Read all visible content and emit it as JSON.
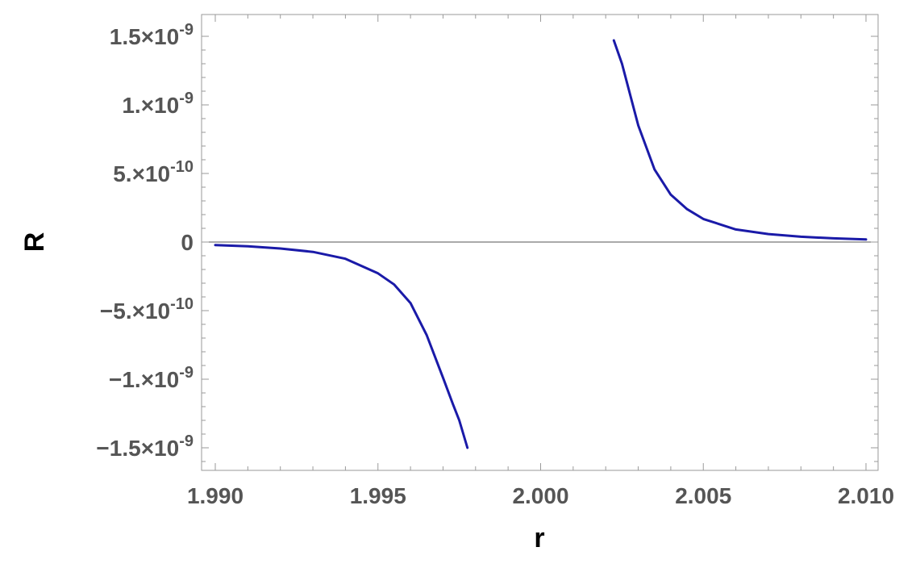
{
  "chart_data": {
    "type": "line",
    "xlabel": "r",
    "ylabel": "R",
    "xlim": [
      1.99,
      2.01
    ],
    "ylim": [
      -1.65e-09,
      1.6e-09
    ],
    "grid": false,
    "x_ticks": [
      {
        "value": 1.99,
        "label": "1.990"
      },
      {
        "value": 1.995,
        "label": "1.995"
      },
      {
        "value": 2.0,
        "label": "2.000"
      },
      {
        "value": 2.005,
        "label": "2.005"
      },
      {
        "value": 2.01,
        "label": "2.010"
      }
    ],
    "y_ticks": [
      {
        "value": 1.5e-09,
        "mant": "1.5",
        "exp": "-9"
      },
      {
        "value": 1e-09,
        "mant": "1.",
        "exp": "-9"
      },
      {
        "value": 5e-10,
        "mant": "5.",
        "exp": "-10"
      },
      {
        "value": 0,
        "mant": "0",
        "exp": ""
      },
      {
        "value": -5e-10,
        "mant": "−5.",
        "exp": "-10"
      },
      {
        "value": -1e-09,
        "mant": "−1.",
        "exp": "-9"
      },
      {
        "value": -1.5e-09,
        "mant": "−1.5",
        "exp": "-9"
      }
    ],
    "series": [
      {
        "color": "#1a1aa8",
        "segments": [
          {
            "x": [
              1.99,
              1.991,
              1.992,
              1.993,
              1.994,
              1.995,
              1.9955,
              1.996,
              1.9965,
              1.997,
              1.9973,
              1.9975,
              1.99775
            ],
            "y": [
              -2.2e-11,
              -3.1e-11,
              -4.7e-11,
              -7.2e-11,
              -1.22e-10,
              -2.28e-10,
              -3.1e-10,
              -4.45e-10,
              -6.8e-10,
              -9.9e-10,
              -1.18e-09,
              -1.3e-09,
              -1.5e-09
            ]
          },
          {
            "x": [
              2.00225,
              2.0025,
              2.0028,
              2.003,
              2.0035,
              2.004,
              2.0045,
              2.005,
              2.006,
              2.007,
              2.008,
              2.009,
              2.01
            ],
            "y": [
              1.47e-09,
              1.3e-09,
              1.03e-09,
              8.5e-10,
              5.3e-10,
              3.45e-10,
              2.4e-10,
              1.68e-10,
              9.2e-11,
              5.8e-11,
              3.9e-11,
              2.7e-11,
              1.9e-11
            ]
          }
        ]
      }
    ]
  }
}
